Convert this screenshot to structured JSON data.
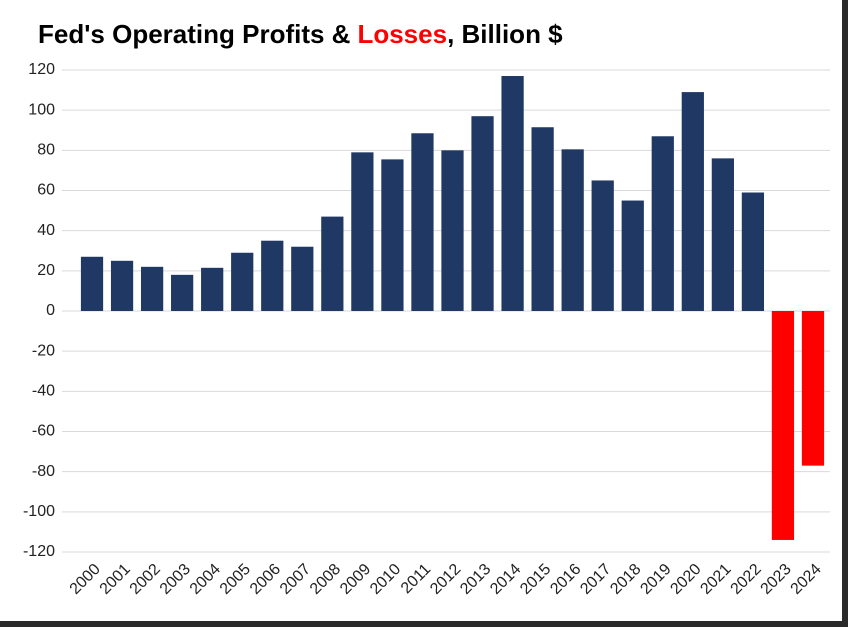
{
  "chart_data": {
    "type": "bar",
    "title": [
      "Fed's Operating Profits &",
      "Losses",
      ", Billion $"
    ],
    "title_colors": [
      "#000000",
      "#ff0000",
      "#000000"
    ],
    "categories": [
      "2000",
      "2001",
      "2002",
      "2003",
      "2004",
      "2005",
      "2006",
      "2007",
      "2008",
      "2009",
      "2010",
      "2011",
      "2012",
      "2013",
      "2014",
      "2015",
      "2016",
      "2017",
      "2018",
      "2019",
      "2020",
      "2021",
      "2022",
      "2023",
      "2024"
    ],
    "values": [
      27,
      25,
      22,
      18,
      21.5,
      29,
      35,
      32,
      47,
      79,
      75.5,
      88.5,
      80,
      97,
      117,
      91.5,
      80.5,
      65,
      55,
      87,
      109,
      76,
      59,
      -114,
      -77
    ],
    "color": "#1f3864",
    "negative_color": "#ff0000",
    "ylim": [
      -120,
      120
    ],
    "yticks": [
      -120,
      -100,
      -80,
      -60,
      -40,
      -20,
      0,
      20,
      40,
      60,
      80,
      100,
      120
    ],
    "grid": true
  }
}
